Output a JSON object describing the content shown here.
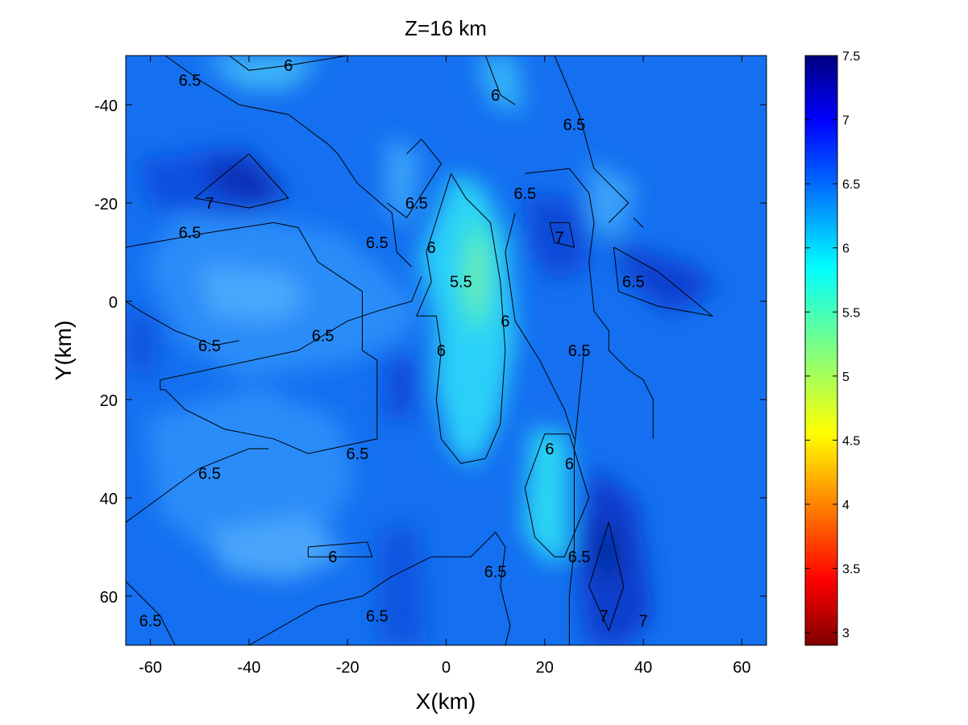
{
  "chart_data": {
    "type": "heatmap",
    "title": "Z=16 km",
    "xlabel": "X(km)",
    "ylabel": "Y(km)",
    "xlim": [
      -65,
      65
    ],
    "ylim": [
      -50,
      70
    ],
    "y_axis_reversed": true,
    "xticks": [
      -60,
      -40,
      -20,
      0,
      20,
      40,
      60
    ],
    "yticks": [
      -40,
      -20,
      0,
      20,
      40,
      60
    ],
    "colorbar": {
      "range": [
        2.9,
        7.5
      ],
      "ticks": [
        3,
        3.5,
        4,
        4.5,
        5,
        5.5,
        6,
        6.5,
        7,
        7.5
      ],
      "colormap": "jet"
    },
    "grid": false,
    "contour_levels": [
      5.5,
      6,
      6.5,
      7
    ],
    "contour_labels": [
      {
        "text": "6.5",
        "x": -52,
        "y": -45
      },
      {
        "text": "6",
        "x": -32,
        "y": -48
      },
      {
        "text": "6",
        "x": 10,
        "y": -42
      },
      {
        "text": "6.5",
        "x": 26,
        "y": -36
      },
      {
        "text": "7",
        "x": -48,
        "y": -20
      },
      {
        "text": "6.5",
        "x": -6,
        "y": -20
      },
      {
        "text": "6.5",
        "x": 16,
        "y": -22
      },
      {
        "text": "6.5",
        "x": -52,
        "y": -14
      },
      {
        "text": "6.5",
        "x": -14,
        "y": -12
      },
      {
        "text": "6",
        "x": -3,
        "y": -11
      },
      {
        "text": "7",
        "x": 23,
        "y": -13
      },
      {
        "text": "5.5",
        "x": 3,
        "y": -4
      },
      {
        "text": "6.5",
        "x": 38,
        "y": -4
      },
      {
        "text": "6",
        "x": 12,
        "y": 4
      },
      {
        "text": "6.5",
        "x": -25,
        "y": 7
      },
      {
        "text": "6.5",
        "x": -48,
        "y": 9
      },
      {
        "text": "6",
        "x": -1,
        "y": 10
      },
      {
        "text": "6.5",
        "x": 27,
        "y": 10
      },
      {
        "text": "6",
        "x": 21,
        "y": 30
      },
      {
        "text": "6",
        "x": 25,
        "y": 33
      },
      {
        "text": "6.5",
        "x": -18,
        "y": 31
      },
      {
        "text": "6.5",
        "x": -48,
        "y": 35
      },
      {
        "text": "6",
        "x": -23,
        "y": 52
      },
      {
        "text": "6.5",
        "x": 27,
        "y": 52
      },
      {
        "text": "6.5",
        "x": 10,
        "y": 55
      },
      {
        "text": "6.5",
        "x": -14,
        "y": 64
      },
      {
        "text": "6.5",
        "x": -60,
        "y": 65
      },
      {
        "text": "7",
        "x": 32,
        "y": 64
      },
      {
        "text": "7",
        "x": 40,
        "y": 65
      }
    ],
    "contours": [
      {
        "level": 7,
        "points": [
          [
            -40,
            -30
          ],
          [
            -32,
            -21
          ],
          [
            -40,
            -19
          ],
          [
            -51,
            -21
          ],
          [
            -40,
            -30
          ]
        ]
      },
      {
        "level": 7,
        "points": [
          [
            33,
            45
          ],
          [
            36,
            58
          ],
          [
            33,
            67
          ],
          [
            29,
            58
          ],
          [
            33,
            45
          ]
        ]
      },
      {
        "level": 7,
        "points": [
          [
            34,
            -11
          ],
          [
            43,
            -6
          ],
          [
            54,
            3
          ],
          [
            43,
            1
          ],
          [
            35,
            -2
          ],
          [
            34,
            -11
          ]
        ]
      },
      {
        "level": 7,
        "points": [
          [
            21,
            -16
          ],
          [
            25,
            -16
          ],
          [
            26,
            -11
          ],
          [
            22,
            -12
          ],
          [
            21,
            -16
          ]
        ]
      },
      {
        "level": 6,
        "points": [
          [
            -20,
            -50
          ],
          [
            -32,
            -48
          ],
          [
            -40,
            -47
          ],
          [
            -44,
            -50
          ]
        ]
      },
      {
        "level": 6,
        "points": [
          [
            8,
            -50
          ],
          [
            11,
            -42
          ],
          [
            14,
            -40
          ]
        ]
      },
      {
        "level": 6,
        "points": [
          [
            1,
            -26
          ],
          [
            4,
            -21
          ],
          [
            9,
            -16
          ],
          [
            11,
            -4
          ],
          [
            12,
            10
          ],
          [
            11,
            25
          ],
          [
            8,
            32
          ],
          [
            3,
            33
          ],
          [
            -1,
            28
          ],
          [
            -2,
            20
          ],
          [
            -1,
            10
          ],
          [
            -2,
            3
          ],
          [
            -6,
            3
          ],
          [
            -3,
            -4
          ],
          [
            -4,
            -10
          ],
          [
            1,
            -26
          ]
        ]
      },
      {
        "level": 6,
        "points": [
          [
            25,
            27
          ],
          [
            29,
            40
          ],
          [
            24,
            52
          ],
          [
            22,
            52
          ],
          [
            18,
            48
          ],
          [
            16,
            38
          ],
          [
            20,
            27
          ],
          [
            25,
            27
          ]
        ]
      },
      {
        "level": 6,
        "points": [
          [
            -28,
            50
          ],
          [
            -16,
            49
          ],
          [
            -15,
            52
          ],
          [
            -28,
            52
          ],
          [
            -28,
            50
          ]
        ]
      },
      {
        "level": 6.5,
        "points": [
          [
            -65,
            -11
          ],
          [
            -48,
            -14
          ],
          [
            -35,
            -16
          ],
          [
            -30,
            -15
          ],
          [
            -26,
            -8
          ],
          [
            -17,
            -2
          ],
          [
            -17,
            10
          ],
          [
            -14,
            12
          ],
          [
            -14,
            28
          ],
          [
            -28,
            31
          ],
          [
            -35,
            28
          ],
          [
            -45,
            26
          ],
          [
            -53,
            22
          ],
          [
            -57,
            18
          ],
          [
            -58,
            18
          ],
          [
            -58,
            16
          ],
          [
            -30,
            10
          ],
          [
            -20,
            4
          ],
          [
            -14,
            2
          ],
          [
            -7,
            0
          ],
          [
            -5,
            -5
          ]
        ]
      },
      {
        "level": 6.5,
        "points": [
          [
            -65,
            0
          ],
          [
            -62,
            2
          ],
          [
            -55,
            6
          ],
          [
            -47,
            9
          ],
          [
            -42,
            8
          ]
        ]
      },
      {
        "level": 6.5,
        "points": [
          [
            -65,
            45
          ],
          [
            -50,
            34
          ],
          [
            -40,
            30
          ],
          [
            -36,
            30
          ]
        ]
      },
      {
        "level": 6.5,
        "points": [
          [
            -65,
            57
          ],
          [
            -58,
            64
          ],
          [
            -55,
            70
          ]
        ]
      },
      {
        "level": 6.5,
        "points": [
          [
            -40,
            70
          ],
          [
            -26,
            62
          ],
          [
            -17,
            60
          ],
          [
            -11,
            56
          ],
          [
            -3,
            52
          ],
          [
            5,
            52
          ],
          [
            10,
            47
          ],
          [
            12,
            50
          ],
          [
            11,
            58
          ],
          [
            13,
            66
          ],
          [
            12,
            70
          ]
        ]
      },
      {
        "level": 6.5,
        "points": [
          [
            -57,
            -50
          ],
          [
            -50,
            -45
          ],
          [
            -42,
            -40
          ],
          [
            -32,
            -38
          ],
          [
            -24,
            -32
          ],
          [
            -22,
            -30
          ],
          [
            -18,
            -24
          ],
          [
            -11,
            -18
          ],
          [
            -10,
            -10
          ],
          [
            -7,
            -7
          ]
        ]
      },
      {
        "level": 6.5,
        "points": [
          [
            -8,
            -30
          ],
          [
            -5,
            -33
          ],
          [
            -1,
            -28
          ],
          [
            -8,
            -17
          ],
          [
            -12,
            -20
          ]
        ]
      },
      {
        "level": 6.5,
        "points": [
          [
            22,
            -50
          ],
          [
            27,
            -38
          ],
          [
            30,
            -27
          ],
          [
            35,
            -22
          ],
          [
            37,
            -20
          ],
          [
            33,
            -16
          ]
        ]
      },
      {
        "level": 6.5,
        "points": [
          [
            16,
            -26
          ],
          [
            25,
            -27
          ],
          [
            29,
            -22
          ],
          [
            30,
            -16
          ],
          [
            29,
            -8
          ],
          [
            30,
            2
          ],
          [
            33,
            6
          ],
          [
            33,
            10
          ],
          [
            37,
            14
          ],
          [
            40,
            16
          ],
          [
            42,
            20
          ],
          [
            42,
            28
          ]
        ]
      },
      {
        "level": 6.5,
        "points": [
          [
            14,
            -18
          ],
          [
            12,
            -10
          ],
          [
            14,
            4
          ],
          [
            19,
            12
          ],
          [
            22,
            18
          ],
          [
            24,
            22
          ],
          [
            26,
            28
          ]
        ]
      },
      {
        "level": 6.5,
        "points": [
          [
            28,
            10
          ],
          [
            27,
            20
          ],
          [
            26,
            30
          ],
          [
            26,
            40
          ],
          [
            26,
            50
          ],
          [
            25,
            60
          ],
          [
            25,
            70
          ]
        ]
      },
      {
        "level": 6.5,
        "points": [
          [
            38,
            -17
          ],
          [
            40,
            -15
          ],
          [
            39,
            -16
          ],
          [
            38,
            -17
          ]
        ]
      }
    ]
  }
}
